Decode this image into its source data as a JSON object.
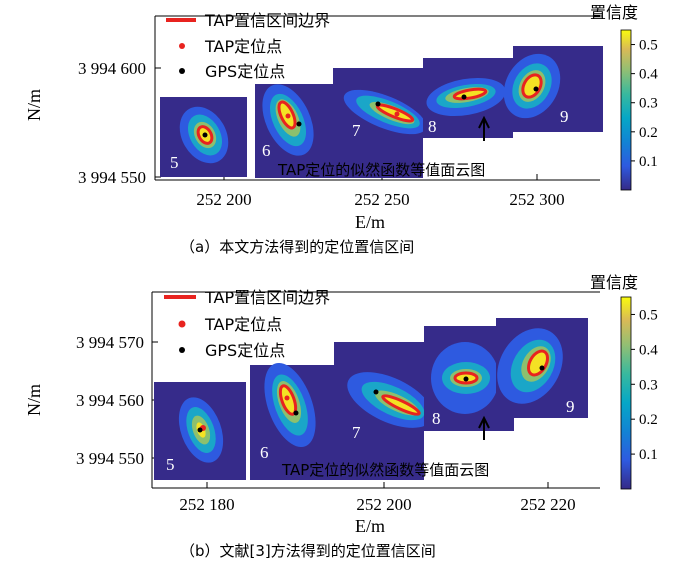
{
  "chart_data": [
    {
      "type": "contour",
      "xlabel": "E/m",
      "ylabel": "N/m",
      "x_ticks": [
        "252 200",
        "252 250",
        "252 300"
      ],
      "y_ticks": [
        "3 994 550",
        "3 994 600"
      ],
      "legend": [
        "TAP置信区间边界",
        "TAP定位点",
        "GPS定位点"
      ],
      "colorbar_title": "置信度",
      "colorbar_ticks": [
        "0.1",
        "0.2",
        "0.3",
        "0.4",
        "0.5"
      ],
      "colorbar_range": [
        0,
        0.55
      ],
      "annotation": "TAP定位的似然函数等值面云图",
      "panels": [
        "5",
        "6",
        "7",
        "8",
        "9"
      ],
      "caption": "（a）本文方法得到的定位置信区间",
      "legend_position": "top-left",
      "colors": {
        "boundary": "#e8231f",
        "tap_point": "#e8231f",
        "gps_point": "#000000"
      }
    },
    {
      "type": "contour",
      "xlabel": "E/m",
      "ylabel": "N/m",
      "x_ticks": [
        "252 180",
        "252 200",
        "252 220"
      ],
      "y_ticks": [
        "3 994 550",
        "3 994 560",
        "3 994 570"
      ],
      "legend": [
        "TAP置信区间边界",
        "TAP定位点",
        "GPS定位点"
      ],
      "colorbar_title": "置信度",
      "colorbar_ticks": [
        "0.1",
        "0.2",
        "0.3",
        "0.4",
        "0.5"
      ],
      "colorbar_range": [
        0,
        0.55
      ],
      "annotation": "TAP定位的似然函数等值面云图",
      "panels": [
        "5",
        "6",
        "7",
        "8",
        "9"
      ],
      "caption": "（b）文献[3]方法得到的定位置信区间",
      "legend_position": "top-left",
      "colors": {
        "boundary": "#e8231f",
        "tap_point": "#e8231f",
        "gps_point": "#000000"
      }
    }
  ]
}
